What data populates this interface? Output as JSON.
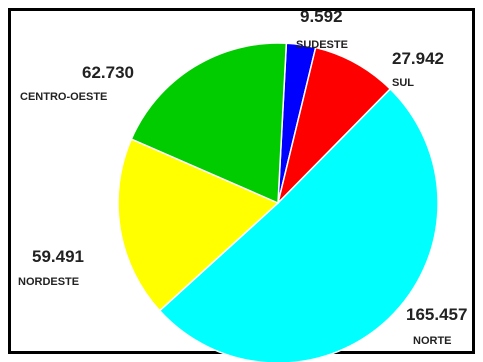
{
  "chart_data": {
    "type": "pie",
    "slices": [
      {
        "region": "SUDESTE",
        "value": "9.592",
        "amount": 9592,
        "color": "#0000ff"
      },
      {
        "region": "SUL",
        "value": "27.942",
        "amount": 27942,
        "color": "#ff0000"
      },
      {
        "region": "NORTE",
        "value": "165.457",
        "amount": 165457,
        "color": "#00ffff"
      },
      {
        "region": "NORDESTE",
        "value": "59.491",
        "amount": 59491,
        "color": "#ffff00"
      },
      {
        "region": "CENTRO-OESTE",
        "value": "62.730",
        "amount": 62730,
        "color": "#00cc00"
      }
    ]
  }
}
